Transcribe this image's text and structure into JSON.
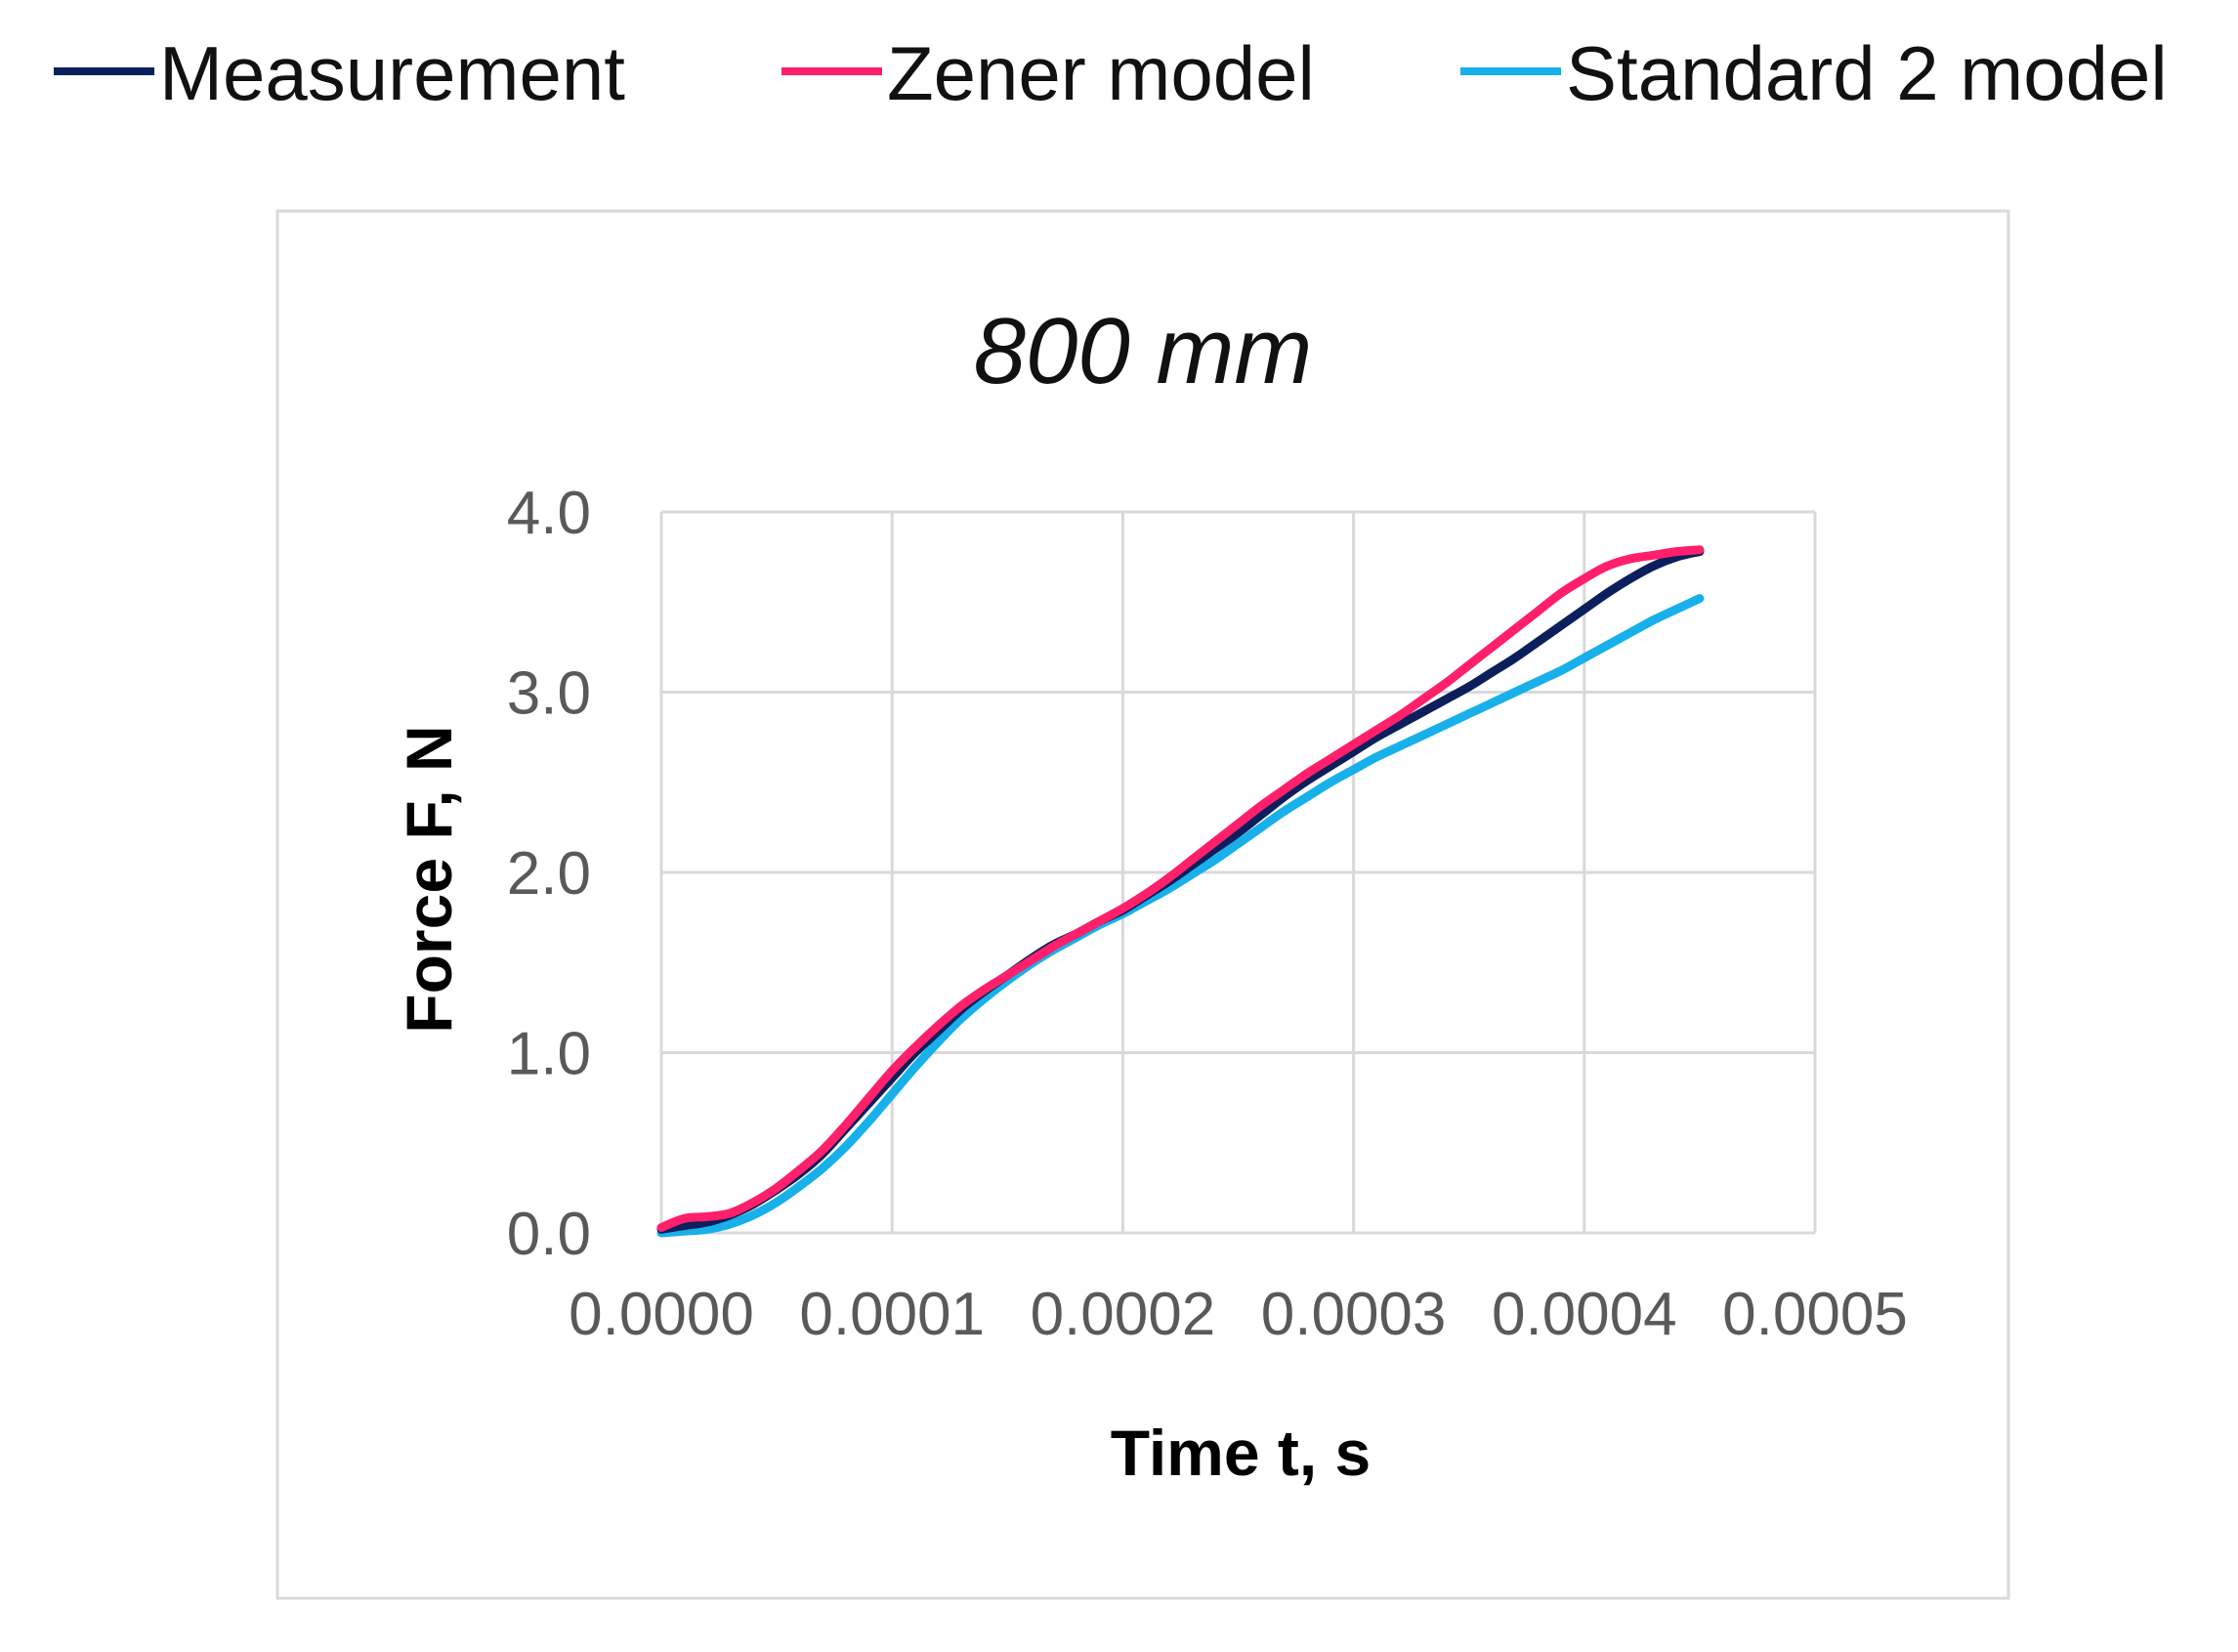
{
  "chart_data": {
    "type": "line",
    "title": "800 mm",
    "xlabel": "Time t, s",
    "ylabel": "Force F, N",
    "xlim": [
      0,
      0.0005
    ],
    "ylim": [
      0,
      4.0
    ],
    "x_ticks": [
      "0.0000",
      "0.0001",
      "0.0002",
      "0.0003",
      "0.0004",
      "0.0005"
    ],
    "y_ticks": [
      "0.0",
      "1.0",
      "2.0",
      "3.0",
      "4.0"
    ],
    "grid": true,
    "legend_position": "top",
    "series": [
      {
        "name": "Measurement",
        "color": "#0b1f5c",
        "x": [
          0,
          1e-05,
          2e-05,
          3e-05,
          4e-05,
          5e-05,
          6e-05,
          7e-05,
          8e-05,
          9e-05,
          0.0001,
          0.00011,
          0.00012,
          0.00013,
          0.00014,
          0.00015,
          0.00016,
          0.00017,
          0.00018,
          0.00019,
          0.0002,
          0.00021,
          0.00022,
          0.00023,
          0.00024,
          0.00025,
          0.00026,
          0.00027,
          0.00028,
          0.00029,
          0.0003,
          0.00031,
          0.00032,
          0.00033,
          0.00034,
          0.00035,
          0.00036,
          0.00037,
          0.00038,
          0.00039,
          0.0004,
          0.00041,
          0.00042,
          0.00043,
          0.00044,
          0.00045
        ],
        "y": [
          0.02,
          0.04,
          0.06,
          0.1,
          0.16,
          0.24,
          0.33,
          0.44,
          0.58,
          0.72,
          0.86,
          1.0,
          1.12,
          1.24,
          1.34,
          1.43,
          1.52,
          1.6,
          1.66,
          1.73,
          1.79,
          1.87,
          1.95,
          2.04,
          2.13,
          2.22,
          2.32,
          2.42,
          2.51,
          2.59,
          2.67,
          2.75,
          2.82,
          2.89,
          2.96,
          3.03,
          3.11,
          3.19,
          3.28,
          3.37,
          3.46,
          3.55,
          3.63,
          3.7,
          3.75,
          3.78
        ]
      },
      {
        "name": "Zener model",
        "color": "#ff1f6a",
        "x": [
          0,
          1e-05,
          2e-05,
          3e-05,
          4e-05,
          5e-05,
          6e-05,
          7e-05,
          8e-05,
          9e-05,
          0.0001,
          0.00011,
          0.00012,
          0.00013,
          0.00014,
          0.00015,
          0.00016,
          0.00017,
          0.00018,
          0.00019,
          0.0002,
          0.00021,
          0.00022,
          0.00023,
          0.00024,
          0.00025,
          0.00026,
          0.00027,
          0.00028,
          0.00029,
          0.0003,
          0.00031,
          0.00032,
          0.00033,
          0.00034,
          0.00035,
          0.00036,
          0.00037,
          0.00038,
          0.00039,
          0.0004,
          0.00041,
          0.00042,
          0.00043,
          0.00044,
          0.00045
        ],
        "y": [
          0.03,
          0.08,
          0.09,
          0.11,
          0.17,
          0.25,
          0.35,
          0.46,
          0.6,
          0.75,
          0.9,
          1.03,
          1.15,
          1.26,
          1.35,
          1.43,
          1.51,
          1.59,
          1.66,
          1.73,
          1.8,
          1.88,
          1.97,
          2.07,
          2.17,
          2.27,
          2.37,
          2.46,
          2.55,
          2.63,
          2.71,
          2.79,
          2.87,
          2.96,
          3.05,
          3.15,
          3.25,
          3.35,
          3.45,
          3.55,
          3.63,
          3.7,
          3.74,
          3.76,
          3.78,
          3.79
        ]
      },
      {
        "name": "Standard 2 model",
        "color": "#17b0ea",
        "x": [
          0,
          1e-05,
          2e-05,
          3e-05,
          4e-05,
          5e-05,
          6e-05,
          7e-05,
          8e-05,
          9e-05,
          0.0001,
          0.00011,
          0.00012,
          0.00013,
          0.00014,
          0.00015,
          0.00016,
          0.00017,
          0.00018,
          0.00019,
          0.0002,
          0.00021,
          0.00022,
          0.00023,
          0.00024,
          0.00025,
          0.00026,
          0.00027,
          0.00028,
          0.00029,
          0.0003,
          0.00031,
          0.00032,
          0.00033,
          0.00034,
          0.00035,
          0.00036,
          0.00037,
          0.00038,
          0.00039,
          0.0004,
          0.00041,
          0.00042,
          0.00043,
          0.00044,
          0.00045
        ],
        "y": [
          0.0,
          0.01,
          0.02,
          0.05,
          0.1,
          0.17,
          0.26,
          0.36,
          0.48,
          0.62,
          0.77,
          0.92,
          1.06,
          1.19,
          1.3,
          1.4,
          1.49,
          1.57,
          1.64,
          1.71,
          1.77,
          1.84,
          1.91,
          1.99,
          2.07,
          2.16,
          2.25,
          2.34,
          2.42,
          2.5,
          2.57,
          2.64,
          2.7,
          2.76,
          2.82,
          2.88,
          2.94,
          3.0,
          3.06,
          3.12,
          3.19,
          3.26,
          3.33,
          3.4,
          3.46,
          3.52
        ]
      }
    ]
  }
}
